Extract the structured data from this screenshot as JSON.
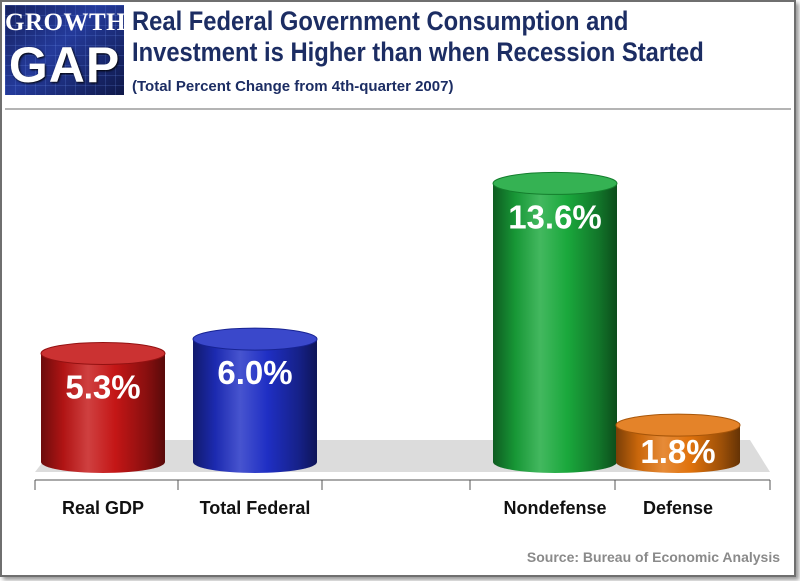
{
  "logo": {
    "line1": "GROWTH",
    "line2": "GAP"
  },
  "header": {
    "title_line1": "Real Federal Government Consumption and",
    "title_line2": "Investment is Higher than when Recession Started",
    "subtitle": "(Total Percent Change from 4th-quarter 2007)"
  },
  "source": "Source:  Bureau of Economic Analysis",
  "colors": {
    "title": "#1c2d63",
    "real_gdp": "#c41616",
    "total_federal": "#1f2fc4",
    "nondefense": "#1aa83c",
    "defense": "#e0720c"
  },
  "chart_data": {
    "type": "bar",
    "title": "Real Federal Government Consumption and Investment is Higher than when Recession Started",
    "subtitle": "(Total Percent Change from 4th-quarter 2007)",
    "xlabel": "",
    "ylabel": "",
    "ylim": [
      0,
      14.5
    ],
    "grid": false,
    "categories": [
      "Real GDP",
      "Total Federal",
      "",
      "Nondefense",
      "Defense"
    ],
    "values": [
      5.3,
      6.0,
      null,
      13.6,
      1.8
    ],
    "value_labels": [
      "5.3%",
      "6.0%",
      "",
      "13.6%",
      "1.8%"
    ],
    "bar_colors": [
      "#c41616",
      "#1f2fc4",
      "",
      "#1aa83c",
      "#e0720c"
    ]
  }
}
